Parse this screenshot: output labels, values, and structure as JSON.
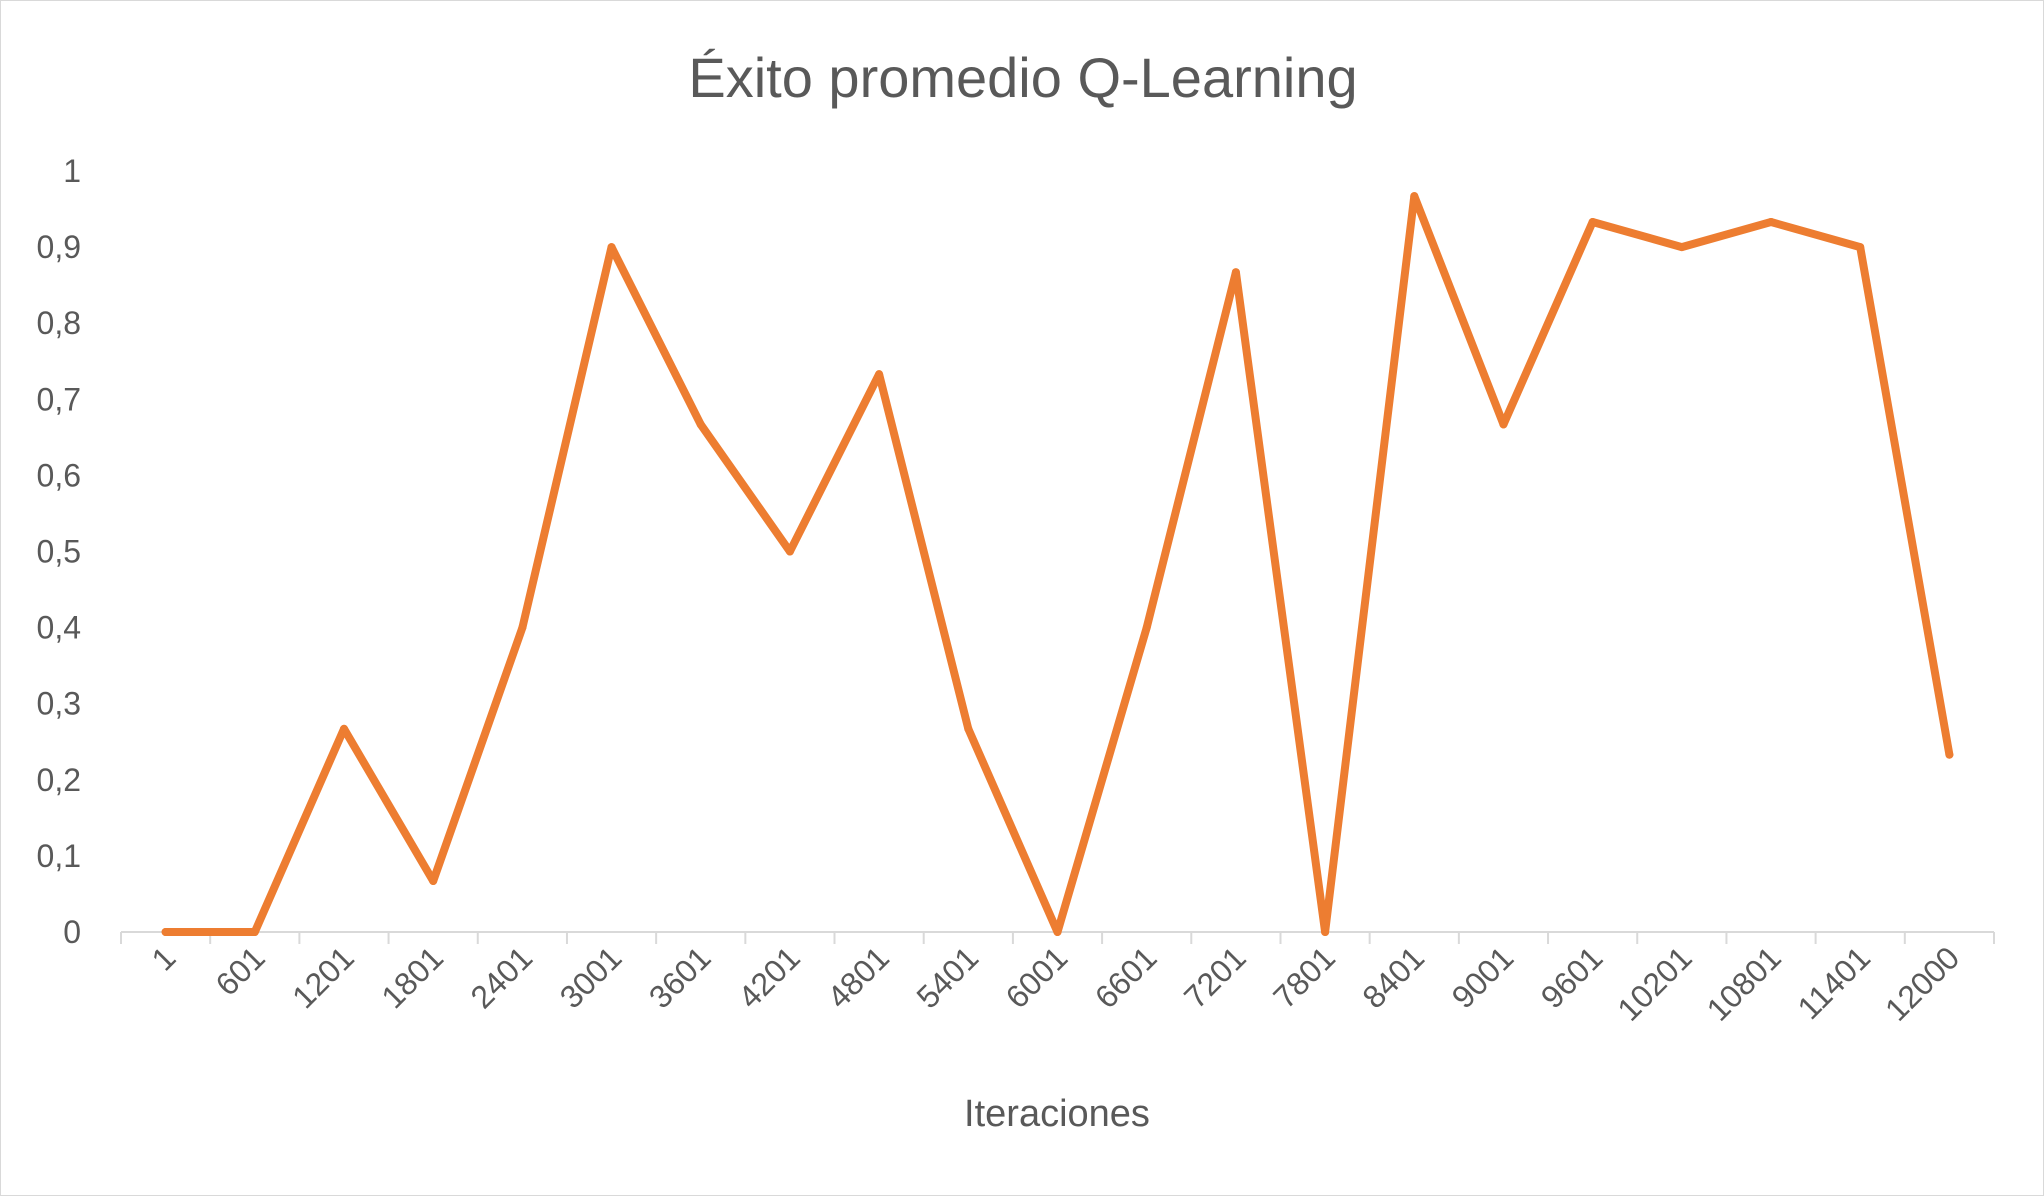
{
  "chart_data": {
    "type": "line",
    "title": "Éxito promedio Q-Learning",
    "xlabel": "Iteraciones",
    "ylabel": "",
    "ylim": [
      0,
      1
    ],
    "yticks": [
      "0",
      "0,1",
      "0,2",
      "0,3",
      "0,4",
      "0,5",
      "0,6",
      "0,7",
      "0,8",
      "0,9",
      "1"
    ],
    "categories": [
      "1",
      "601",
      "1201",
      "1801",
      "2401",
      "3001",
      "3601",
      "4201",
      "4801",
      "5401",
      "6001",
      "6601",
      "7201",
      "7801",
      "8401",
      "9001",
      "9601",
      "10201",
      "10801",
      "11401",
      "12000"
    ],
    "series": [
      {
        "color": "#ed7d31",
        "values": [
          0,
          0,
          0.267,
          0.067,
          0.4,
          0.9,
          0.667,
          0.5,
          0.733,
          0.267,
          0,
          0.4,
          0.867,
          0,
          0.967,
          0.667,
          0.933,
          0.9,
          0.933,
          0.9,
          0.233
        ]
      }
    ],
    "grid": false,
    "legend": "none"
  }
}
